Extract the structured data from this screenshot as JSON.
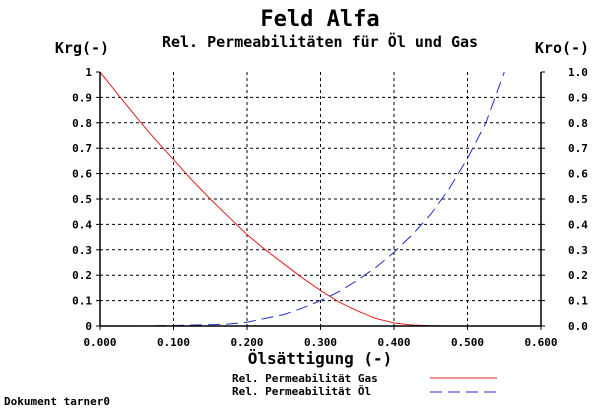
{
  "chart_data": {
    "type": "line",
    "title": "Feld Alfa",
    "subtitle": "Rel. Permeabilitäten für Öl und Gas",
    "xlabel": "Ölsättigung (-)",
    "ylabel_left": "Krg(-)",
    "ylabel_right": "Kro(-)",
    "xlim": [
      0,
      0.6
    ],
    "ylim": [
      0,
      1
    ],
    "grid": true,
    "x_ticks": [
      "0.000",
      "0.100",
      "0.200",
      "0.300",
      "0.400",
      "0.500",
      "0.600"
    ],
    "y_ticks_left": [
      "0",
      "0.1",
      "0.2",
      "0.3",
      "0.4",
      "0.5",
      "0.6",
      "0.7",
      "0.8",
      "0.9",
      "1"
    ],
    "y_ticks_right": [
      "0.0",
      "0.1",
      "0.2",
      "0.3",
      "0.4",
      "0.5",
      "0.6",
      "0.7",
      "0.8",
      "0.9",
      "1.0"
    ],
    "series": [
      {
        "name": "Rel. Permeabilität Gas",
        "color": "#e02020",
        "dash": "solid",
        "x": [
          0.0,
          0.025,
          0.05,
          0.075,
          0.1,
          0.125,
          0.15,
          0.175,
          0.2,
          0.225,
          0.25,
          0.275,
          0.3,
          0.325,
          0.35,
          0.375,
          0.4,
          0.425,
          0.45,
          0.475,
          0.5,
          0.525,
          0.55
        ],
        "y": [
          1.0,
          0.91,
          0.82,
          0.735,
          0.655,
          0.575,
          0.5,
          0.43,
          0.36,
          0.3,
          0.245,
          0.19,
          0.14,
          0.095,
          0.06,
          0.03,
          0.012,
          0.004,
          0.001,
          0.0,
          0.0,
          0.0,
          0.0
        ]
      },
      {
        "name": "Rel. Permeabilität Öl",
        "color": "#2030c8",
        "dash": "dashed",
        "x": [
          0.0,
          0.05,
          0.1,
          0.15,
          0.175,
          0.2,
          0.225,
          0.25,
          0.275,
          0.3,
          0.325,
          0.35,
          0.375,
          0.4,
          0.425,
          0.45,
          0.475,
          0.5,
          0.525,
          0.55
        ],
        "y": [
          0.0,
          0.0,
          0.002,
          0.005,
          0.008,
          0.015,
          0.03,
          0.045,
          0.07,
          0.1,
          0.135,
          0.18,
          0.23,
          0.29,
          0.36,
          0.44,
          0.54,
          0.66,
          0.8,
          1.0
        ]
      }
    ]
  },
  "footer": {
    "document": "Dokument tarner0"
  }
}
